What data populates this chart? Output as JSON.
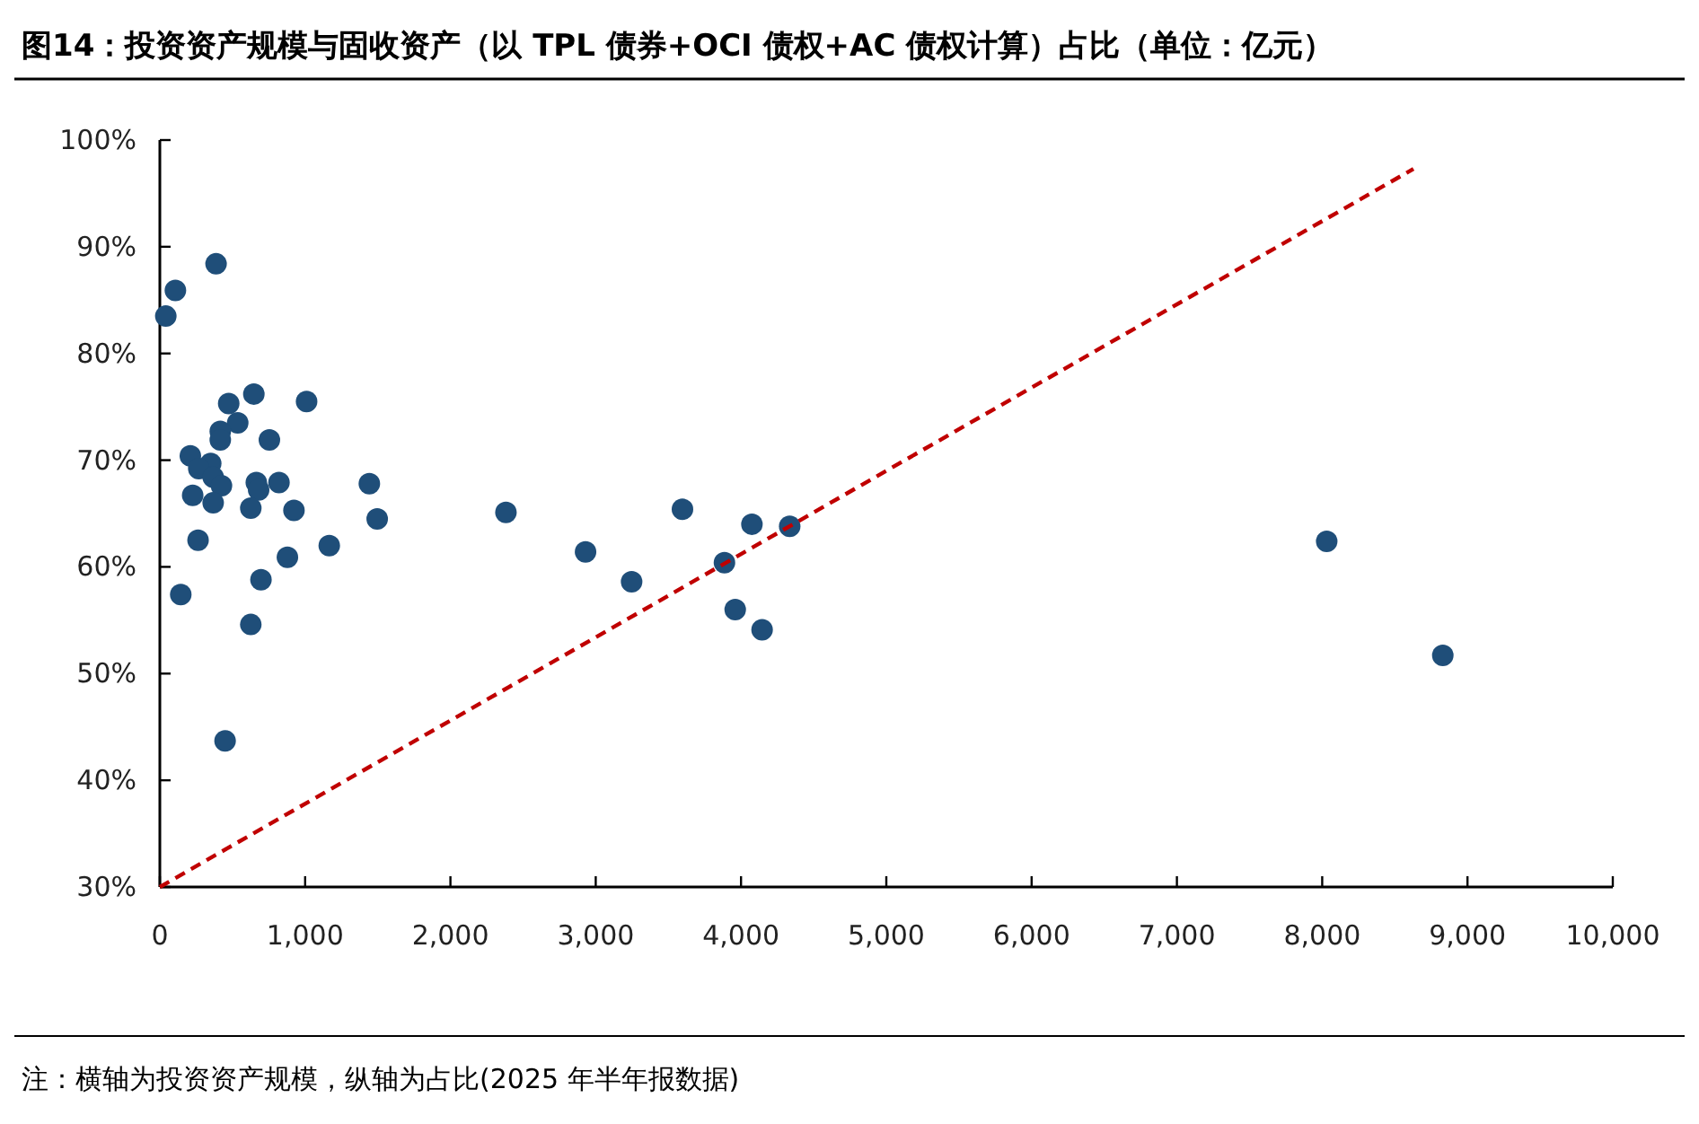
{
  "chart_data": {
    "type": "scatter",
    "title": "图14：投资资产规模与固收资产（以 TPL 债券+OCI 债权+AC 债权计算）占比（单位：亿元）",
    "annotations": [
      "注：横轴为投资资产规模，纵轴为占比(2025 年半年报数据)"
    ],
    "xlim": [
      0,
      10000
    ],
    "xticks": [
      0,
      {
        "value": 1000,
        "label": "1,000"
      },
      {
        "value": 2000,
        "label": "2,000"
      },
      {
        "value": 3000,
        "label": "3,000"
      },
      {
        "value": 4000,
        "label": "4,000"
      },
      {
        "value": 5000,
        "label": "5,000"
      },
      {
        "value": 6000,
        "label": "6,000"
      },
      {
        "value": 7000,
        "label": "7,000"
      },
      {
        "value": 8000,
        "label": "8,000"
      },
      {
        "value": 9000,
        "label": "9,000"
      },
      {
        "value": 10000,
        "label": "10,000"
      }
    ],
    "ylim": [
      30,
      100
    ],
    "yticks": [
      {
        "value": 30,
        "label": "30%"
      },
      {
        "value": 40,
        "label": "40%"
      },
      {
        "value": 50,
        "label": "50%"
      },
      {
        "value": 60,
        "label": "60%"
      },
      {
        "value": 70,
        "label": "70%"
      },
      {
        "value": 80,
        "label": "80%"
      },
      {
        "value": 90,
        "label": "90%"
      },
      {
        "value": 100,
        "label": "100%"
      }
    ],
    "grid": false,
    "marker": "circle",
    "series": [
      {
        "color": "#1f4e79",
        "x": [
          41,
          107,
          387,
          647,
          474,
          1010,
          536,
          416,
          416,
          754,
          210,
          350,
          268,
          367,
          424,
          226,
          367,
          664,
          680,
          820,
          626,
          923,
          1442,
          1496,
          263,
          1166,
          878,
          696,
          144,
          626,
          449,
          2382,
          2930,
          3247,
          3597,
          4075,
          4335,
          3886,
          3960,
          4145,
          8031,
          8830
        ],
        "values": [
          83.5,
          85.9,
          88.4,
          76.2,
          75.3,
          75.5,
          73.5,
          72.7,
          71.9,
          71.9,
          70.4,
          69.7,
          69.2,
          68.4,
          67.6,
          66.7,
          66.0,
          67.9,
          67.2,
          67.9,
          65.5,
          65.3,
          67.8,
          64.5,
          62.5,
          62.0,
          60.9,
          58.8,
          57.4,
          54.6,
          43.7,
          65.1,
          61.4,
          58.6,
          65.4,
          64.0,
          63.8,
          60.4,
          56.0,
          54.1,
          62.4,
          51.7
        ]
      },
      {
        "type": "line",
        "color": "#c00000",
        "line_style": "dashed",
        "marker": "none",
        "x": [
          0,
          8628
        ],
        "values": [
          30,
          97.3
        ]
      }
    ]
  }
}
